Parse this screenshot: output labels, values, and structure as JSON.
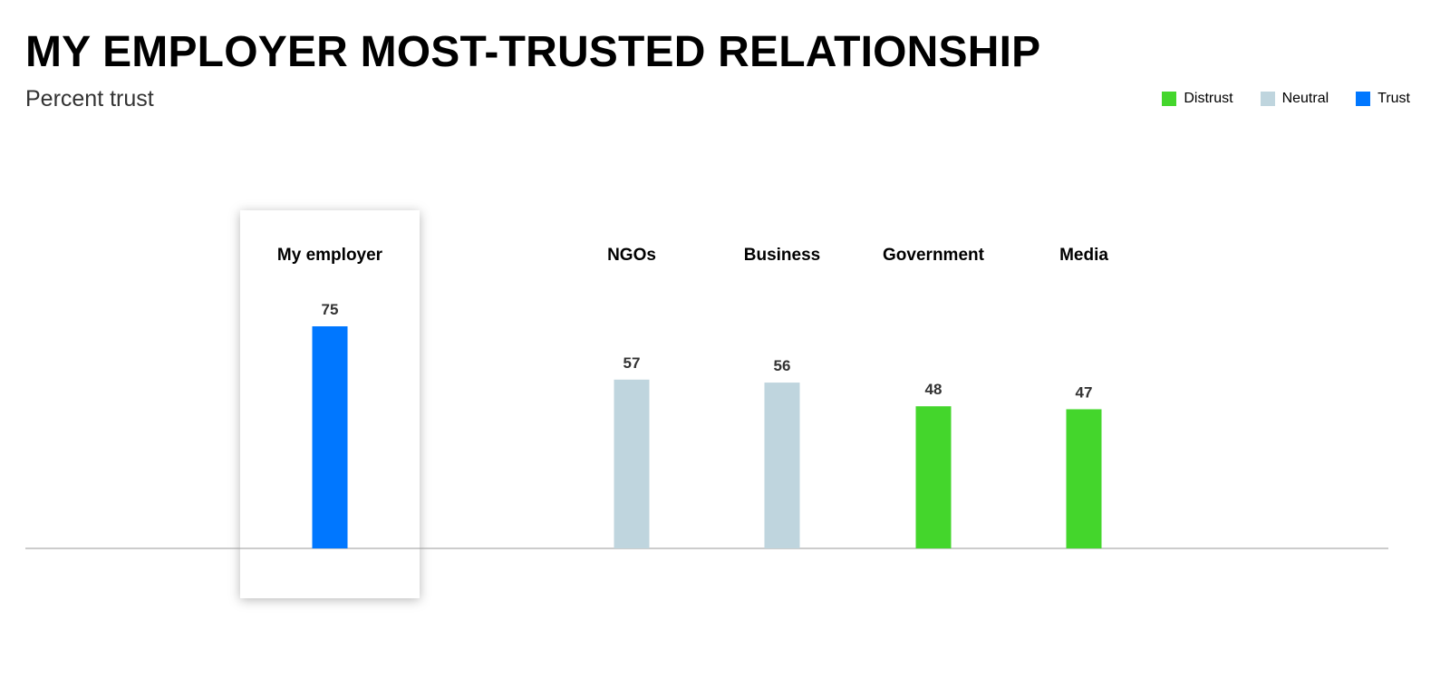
{
  "chart_data": {
    "type": "bar",
    "title": "MY EMPLOYER MOST-TRUSTED RELATIONSHIP",
    "subtitle": "Percent trust",
    "categories": [
      "My employer",
      "NGOs",
      "Business",
      "Government",
      "Media"
    ],
    "values": [
      75,
      57,
      56,
      48,
      47
    ],
    "bar_colors": [
      "#0077ff",
      "#bfd5de",
      "#bfd5de",
      "#44d62c",
      "#44d62c"
    ],
    "highlighted_category": "My employer",
    "legend": [
      {
        "label": "Distrust",
        "color": "#44d62c"
      },
      {
        "label": "Neutral",
        "color": "#bfd5de"
      },
      {
        "label": "Trust",
        "color": "#0077ff"
      }
    ],
    "legend_position": "top-right",
    "ylim": [
      0,
      100
    ],
    "grid": false
  }
}
